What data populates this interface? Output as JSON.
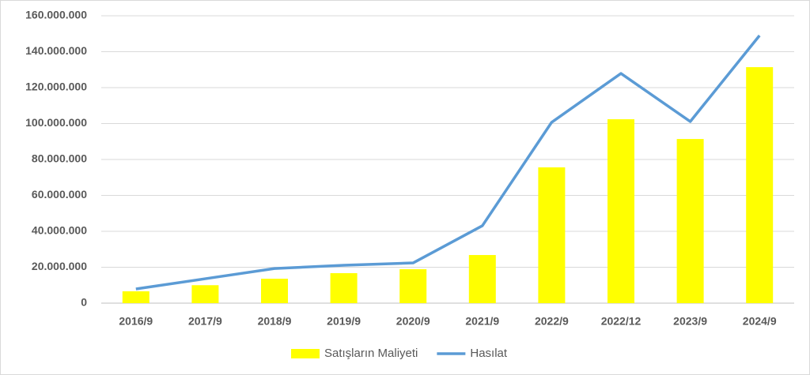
{
  "chart_data": {
    "type": "combo",
    "categories": [
      "2016/9",
      "2017/9",
      "2018/9",
      "2019/9",
      "2020/9",
      "2021/9",
      "2022/9",
      "2022/12",
      "2023/9",
      "2024/9"
    ],
    "series": [
      {
        "name": "Satışların Maliyeti",
        "type": "bar",
        "color": "#ffff00",
        "values": [
          6600000,
          10000000,
          13600000,
          16700000,
          18900000,
          26800000,
          75600000,
          102400000,
          91400000,
          131400000
        ]
      },
      {
        "name": "Hasılat",
        "type": "line",
        "color": "#5b9bd5",
        "values": [
          7900000,
          13600000,
          19300000,
          21100000,
          22400000,
          43100000,
          100700000,
          127900000,
          101100000,
          149000000
        ]
      }
    ],
    "ylim": [
      0,
      160000000
    ],
    "yticks": [
      0,
      {
        "value": 20000000,
        "label": "20.000.000"
      },
      {
        "value": 40000000,
        "label": "40.000.000"
      },
      {
        "value": 60000000,
        "label": "60.000.000"
      },
      {
        "value": 80000000,
        "label": "80.000.000"
      },
      {
        "value": 100000000,
        "label": "100.000.000"
      },
      {
        "value": 120000000,
        "label": "120.000.000"
      },
      {
        "value": 140000000,
        "label": "140.000.000"
      },
      {
        "value": 160000000,
        "label": "160.000.000"
      }
    ],
    "grid": true,
    "legend": "bottom"
  }
}
